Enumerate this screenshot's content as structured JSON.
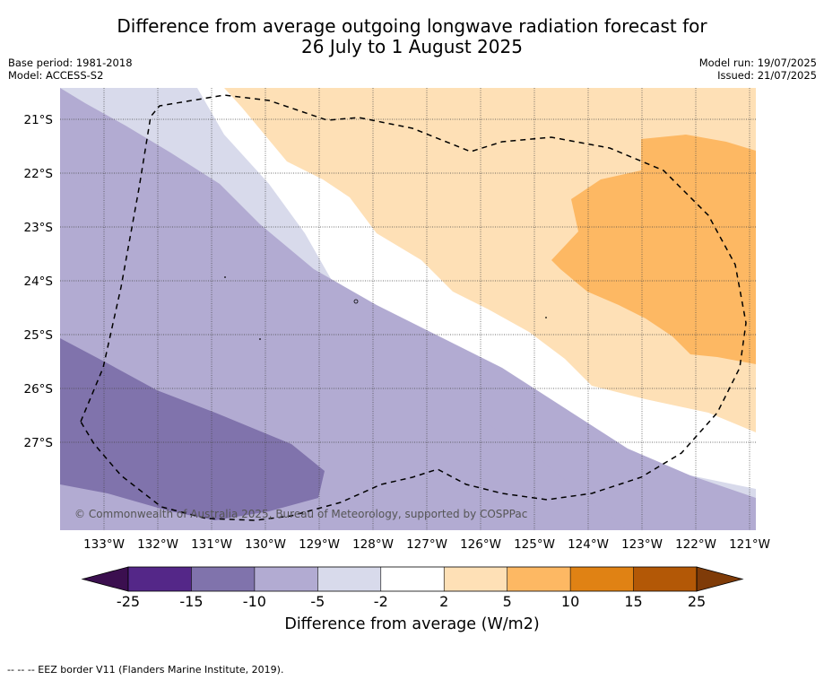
{
  "title_line1": "Difference from average outgoing longwave radiation forecast for",
  "title_line2": "26 July to 1 August 2025",
  "base_period": "Base period: 1981-2018",
  "model": "Model: ACCESS-S2",
  "model_run": "Model run: 19/07/2025",
  "issued": "Issued: 21/07/2025",
  "copyright": "© Commonwealth of Australia 2025, Bureau of Meteorology, supported by COSPPac",
  "lat_labels": [
    "21°S",
    "22°S",
    "23°S",
    "24°S",
    "25°S",
    "26°S",
    "27°S"
  ],
  "lon_labels": [
    "133°W",
    "132°W",
    "131°W",
    "130°W",
    "129°W",
    "128°W",
    "127°W",
    "126°W",
    "125°W",
    "124°W",
    "123°W",
    "122°W",
    "121°W"
  ],
  "colorbar": {
    "ticks": [
      "-25",
      "-15",
      "-10",
      "-5",
      "-2",
      "2",
      "5",
      "10",
      "15",
      "25"
    ],
    "colors": [
      "#3b0f4f",
      "#542788",
      "#8073ac",
      "#b2abd2",
      "#d8daeb",
      "#ffffff",
      "#fee0b6",
      "#fdb863",
      "#e08214",
      "#b35806",
      "#7f3b08"
    ],
    "label": "Difference from average (W/m2)"
  },
  "footnote": "--  --  -- EEZ border V11 (Flanders Marine Institute, 2019)."
}
